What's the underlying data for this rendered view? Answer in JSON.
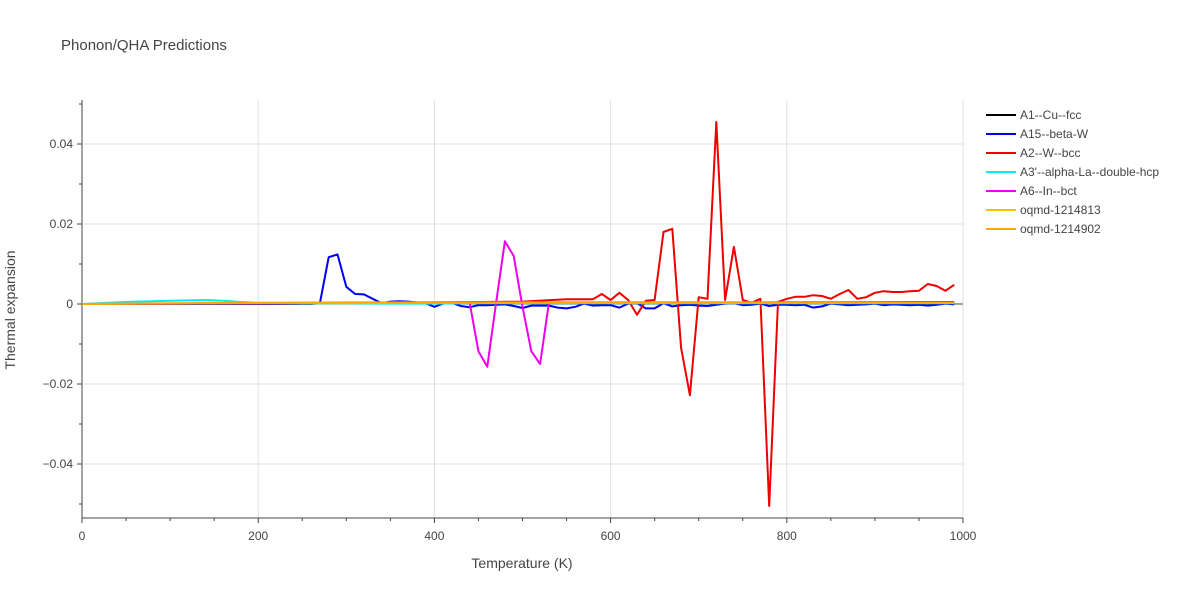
{
  "chart_data": {
    "type": "line",
    "title": "Phonon/QHA Predictions",
    "xlabel": "Temperature (K)",
    "ylabel": "Thermal expansion",
    "xlim": [
      0,
      1000
    ],
    "ylim": [
      -0.0535,
      0.051
    ],
    "x_ticks": [
      0,
      200,
      400,
      600,
      800,
      1000
    ],
    "x_tick_labels": [
      "0",
      "200",
      "400",
      "600",
      "800",
      "1000"
    ],
    "y_ticks": [
      -0.04,
      -0.02,
      0,
      0.02,
      0.04
    ],
    "y_tick_labels": [
      "−0.04",
      "−0.02",
      "0",
      "0.02",
      "0.04"
    ],
    "grid": true,
    "legend_position": "right",
    "series": [
      {
        "name": "A1--Cu--fcc",
        "color": "#000000",
        "x": [
          0,
          100,
          200,
          300,
          400,
          500,
          600,
          700,
          800,
          900,
          990
        ],
        "y": [
          0,
          5e-05,
          0.0001,
          0.00015,
          0.0002,
          0.00025,
          0.0003,
          0.00035,
          0.0004,
          0.00045,
          0.0005
        ]
      },
      {
        "name": "A15--beta-W",
        "color": "#0000ee",
        "x": [
          0,
          100,
          200,
          260,
          270,
          280,
          290,
          300,
          310,
          320,
          330,
          340,
          350,
          360,
          370,
          380,
          390,
          400,
          410,
          420,
          430,
          440,
          450,
          460,
          470,
          480,
          490,
          500,
          510,
          520,
          530,
          540,
          550,
          560,
          570,
          580,
          590,
          600,
          610,
          620,
          630,
          640,
          650,
          660,
          670,
          680,
          690,
          700,
          710,
          720,
          730,
          740,
          750,
          760,
          770,
          780,
          790,
          800,
          810,
          820,
          830,
          840,
          850,
          860,
          870,
          880,
          890,
          900,
          910,
          920,
          930,
          940,
          950,
          960,
          970,
          980,
          990
        ],
        "y": [
          0,
          0,
          0,
          0,
          0.0002,
          0.0117,
          0.0124,
          0.0043,
          0.0025,
          0.0024,
          0.0013,
          0.0002,
          0.0006,
          0.0007,
          0.0006,
          0.0004,
          0.0002,
          -0.0007,
          0.0001,
          0.0003,
          -0.0005,
          -0.0008,
          -0.0003,
          -0.0003,
          -0.0002,
          -0.0001,
          -0.0005,
          -0.001,
          -0.0004,
          -0.0004,
          -0.0004,
          -0.0009,
          -0.0011,
          -0.0007,
          0.0001,
          -0.0004,
          -0.0003,
          -0.0003,
          -0.0009,
          0.0001,
          0.0002,
          -0.0011,
          -0.0011,
          0.0002,
          -0.0006,
          -0.0003,
          -0.0002,
          -0.0004,
          -0.0005,
          -0.0002,
          0.0001,
          0.0002,
          -0.0003,
          -0.0002,
          0.0001,
          -0.0005,
          -0.0002,
          -0.0002,
          -0.0003,
          -0.0002,
          -0.0009,
          -0.0006,
          0.0001,
          -0.0001,
          -0.0003,
          -0.0002,
          -0.0001,
          0.0001,
          -0.0003,
          -0.0001,
          -0.0002,
          -0.0003,
          -0.0002,
          -0.0004,
          -0.0002,
          0.0001,
          -0.0001
        ]
      },
      {
        "name": "A2--W--bcc",
        "color": "#ee0000",
        "x": [
          0,
          100,
          200,
          300,
          400,
          500,
          550,
          580,
          590,
          600,
          610,
          620,
          630,
          640,
          650,
          660,
          670,
          680,
          690,
          700,
          710,
          720,
          730,
          740,
          750,
          760,
          770,
          780,
          790,
          800,
          810,
          820,
          830,
          840,
          850,
          860,
          870,
          880,
          890,
          900,
          910,
          920,
          930,
          940,
          950,
          960,
          970,
          980,
          990
        ],
        "y": [
          0,
          0.0001,
          0.0002,
          0.0003,
          0.0004,
          0.0006,
          0.0012,
          0.0012,
          0.0025,
          0.001,
          0.0028,
          0.001,
          -0.0027,
          0.0008,
          0.001,
          0.018,
          0.0188,
          -0.011,
          -0.0228,
          0.0017,
          0.0013,
          0.0455,
          0.001,
          0.0143,
          0.001,
          0.0003,
          0.0013,
          -0.0505,
          0.0005,
          0.0013,
          0.0018,
          0.0018,
          0.0022,
          0.002,
          0.0013,
          0.0025,
          0.0035,
          0.0013,
          0.0017,
          0.0028,
          0.0032,
          0.003,
          0.003,
          0.0032,
          0.0033,
          0.005,
          0.0045,
          0.0033,
          0.0048
        ]
      },
      {
        "name": "A3'--alpha-La--double-hcp",
        "color": "#00eeee",
        "x": [
          0,
          40,
          60,
          80,
          100,
          120,
          140,
          160,
          180,
          200,
          250,
          300,
          350,
          400,
          450,
          500,
          550,
          600,
          700,
          800,
          900,
          990
        ],
        "y": [
          0,
          0.0004,
          0.0006,
          0.0007,
          0.0008,
          0.0009,
          0.001,
          0.0008,
          0.0005,
          0.0003,
          0.0001,
          0.0001,
          0.0001,
          0.0001,
          0.0002,
          0.0002,
          0.0002,
          0.0002,
          0.0002,
          0.0002,
          0.0002,
          0.0002
        ]
      },
      {
        "name": "A6--In--bct",
        "color": "#ee00ee",
        "x": [
          0,
          100,
          200,
          300,
          400,
          430,
          440,
          450,
          460,
          470,
          480,
          490,
          500,
          510,
          520,
          530,
          540,
          550,
          600,
          700,
          800,
          900,
          990
        ],
        "y": [
          0,
          0.0001,
          0.0002,
          0.0003,
          0.0004,
          0.0004,
          0.0004,
          -0.0118,
          -0.0157,
          0.0003,
          0.0157,
          0.012,
          -0.0007,
          -0.0118,
          -0.015,
          0.0003,
          0.0004,
          0.0004,
          0.0004,
          0.0004,
          0.0004,
          0.0004,
          0.0004
        ]
      },
      {
        "name": "oqmd-1214813",
        "color": "#ffbb00",
        "x": [
          0,
          100,
          200,
          300,
          400,
          500,
          600,
          700,
          800,
          900,
          990
        ],
        "y": [
          0,
          0.0001,
          0.0002,
          0.0002,
          0.0003,
          0.0003,
          0.0003,
          0.0003,
          0.0003,
          0.0003,
          0.0003
        ]
      },
      {
        "name": "oqmd-1214902",
        "color": "#ffa500",
        "x": [
          0,
          100,
          200,
          300,
          400,
          500,
          600,
          700,
          800,
          900,
          990
        ],
        "y": [
          0,
          0.0002,
          0.0003,
          0.0004,
          0.0004,
          0.0004,
          0.0004,
          0.0004,
          0.0004,
          0.0004,
          0.0004
        ]
      }
    ]
  }
}
